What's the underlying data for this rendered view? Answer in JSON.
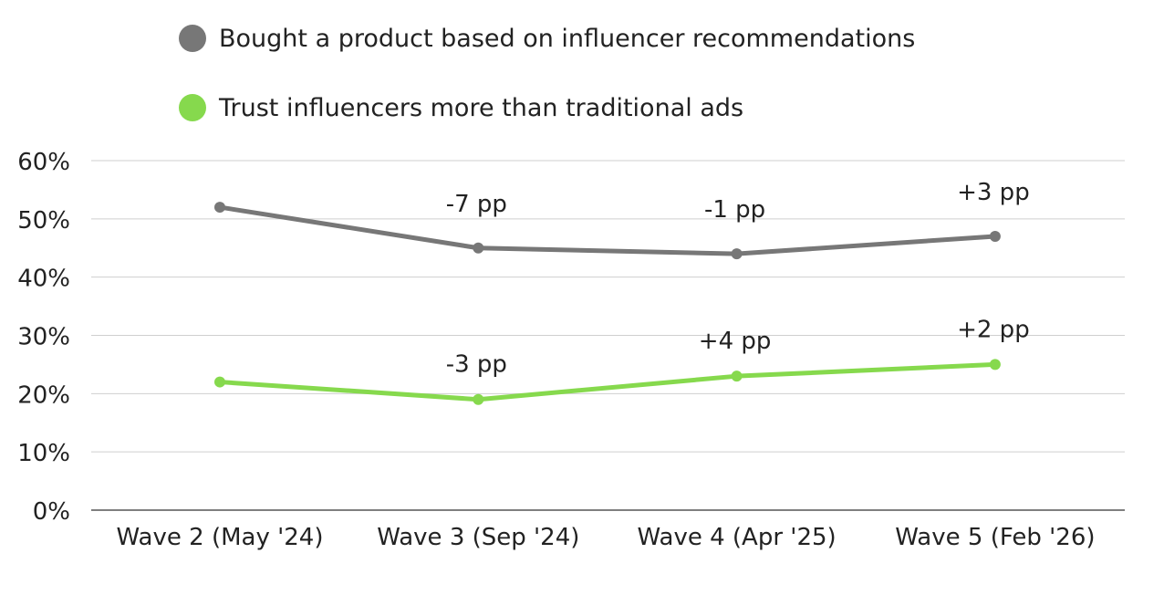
{
  "chart_data": {
    "type": "line",
    "categories": [
      "Wave 2 (May '24)",
      "Wave 3 (Sep '24)",
      "Wave 4 (Apr '25)",
      "Wave 5 (Feb '26)"
    ],
    "series": [
      {
        "name": "Bought a product based on influencer recommendations",
        "values": [
          52,
          45,
          44,
          47
        ],
        "color": "#777777",
        "annotations": [
          "",
          "-7 pp",
          "-1 pp",
          "+3 pp"
        ]
      },
      {
        "name": "Trust influencers more than traditional ads",
        "values": [
          22,
          19,
          23,
          25
        ],
        "color": "#86d94d",
        "annotations": [
          "",
          "-3 pp",
          "+4 pp",
          "+2 pp"
        ]
      }
    ],
    "ylim": [
      0,
      60
    ],
    "yticks": [
      0,
      10,
      20,
      30,
      40,
      50,
      60
    ],
    "ytick_labels": [
      "0%",
      "10%",
      "20%",
      "30%",
      "40%",
      "50%",
      "60%"
    ],
    "grid": true,
    "legend_position": "top-left"
  }
}
